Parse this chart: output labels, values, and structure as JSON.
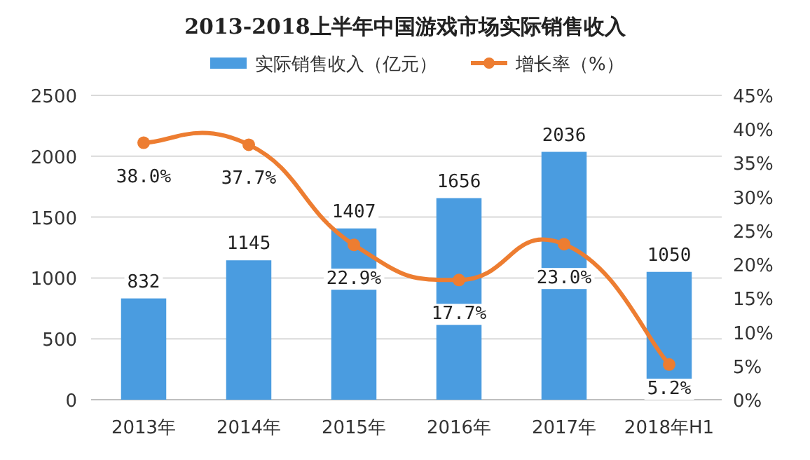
{
  "chart_data": {
    "type": "bar",
    "title": "2013-2018上半年中国游戏市场实际销售收入",
    "categories": [
      "2013年",
      "2014年",
      "2015年",
      "2016年",
      "2017年",
      "2018年H1"
    ],
    "series": [
      {
        "name": "实际销售收入（亿元）",
        "color": "#4a9ce0",
        "values": [
          832,
          1145,
          1407,
          1656,
          2036,
          1050
        ],
        "value_labels": [
          "832",
          "1145",
          "1407",
          "1656",
          "2036",
          "1050"
        ]
      },
      {
        "name": "增长率（%）",
        "type": "line",
        "axis": "y2",
        "color": "#ed7d31",
        "values": [
          38.0,
          37.7,
          22.9,
          17.7,
          23.0,
          5.2
        ],
        "value_labels": [
          "38.0%",
          "37.7%",
          "22.9%",
          "17.7%",
          "23.0%",
          "5.2%"
        ]
      }
    ],
    "ylim": [
      0,
      2500
    ],
    "yticks": [
      0,
      500,
      1000,
      1500,
      2000,
      2500
    ],
    "y2lim": [
      0,
      45
    ],
    "y2ticks": [
      {
        "value": 0,
        "label": "0%"
      },
      {
        "value": 5,
        "label": "5%"
      },
      {
        "value": 10,
        "label": "10%"
      },
      {
        "value": 15,
        "label": "15%"
      },
      {
        "value": 20,
        "label": "20%"
      },
      {
        "value": 25,
        "label": "25%"
      },
      {
        "value": 30,
        "label": "30%"
      },
      {
        "value": 35,
        "label": "35%"
      },
      {
        "value": 40,
        "label": "40%"
      },
      {
        "value": 45,
        "label": "45%"
      }
    ],
    "grid": "y",
    "legend": "top",
    "marker": "circle"
  }
}
